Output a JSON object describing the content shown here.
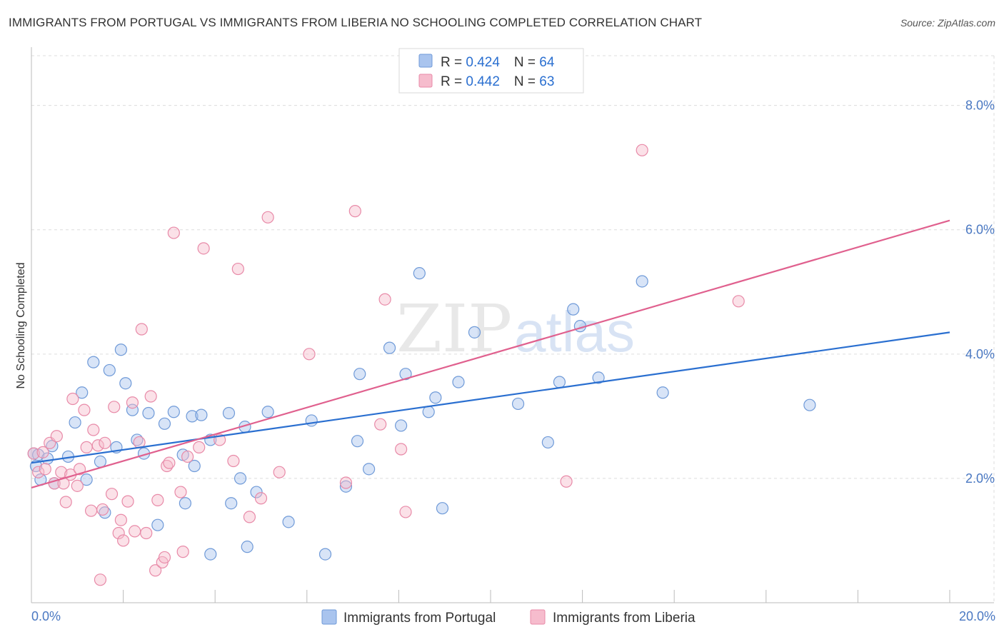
{
  "title": "IMMIGRANTS FROM PORTUGAL VS IMMIGRANTS FROM LIBERIA NO SCHOOLING COMPLETED CORRELATION CHART",
  "source": "Source: ZipAtlas.com",
  "watermark": {
    "zip": "ZIP",
    "atlas": "atlas"
  },
  "colors": {
    "portugal_fill": "#a9c4ee",
    "portugal_stroke": "#6f9ad8",
    "portugal_line": "#2a6fd0",
    "liberia_fill": "#f6bccd",
    "liberia_stroke": "#e88aa8",
    "liberia_line": "#e0608e",
    "tick_text": "#4a78c2",
    "grid": "#dddddd"
  },
  "legend_top": {
    "rows": [
      {
        "r_label": "R = ",
        "r_value": "0.424",
        "n_label": "N = ",
        "n_value": "64"
      },
      {
        "r_label": "R = ",
        "r_value": "0.442",
        "n_label": "N = ",
        "n_value": "63"
      }
    ]
  },
  "chart_data": {
    "type": "scatter",
    "title": "IMMIGRANTS FROM PORTUGAL VS IMMIGRANTS FROM LIBERIA NO SCHOOLING COMPLETED CORRELATION CHART",
    "xlabel": "",
    "ylabel": "No Schooling Completed",
    "xlim": [
      0,
      20
    ],
    "ylim": [
      0,
      8.8
    ],
    "x_tick_labels": [
      {
        "value": 0,
        "label": "0.0%"
      },
      {
        "value": 20,
        "label": "20.0%"
      }
    ],
    "y_tick_labels": [
      {
        "value": 2,
        "label": "2.0%"
      },
      {
        "value": 4,
        "label": "4.0%"
      },
      {
        "value": 6,
        "label": "6.0%"
      },
      {
        "value": 8,
        "label": "8.0%"
      }
    ],
    "x_minor_ticks": [
      0,
      2,
      4,
      6,
      8,
      10,
      12,
      14,
      16,
      18,
      20
    ],
    "legend_position": "top-center",
    "series": [
      {
        "name": "Immigrants from Portugal",
        "r": 0.424,
        "n": 64,
        "trend": {
          "x": [
            0,
            20
          ],
          "y": [
            2.25,
            4.35
          ]
        },
        "points": [
          {
            "x": 0.05,
            "y": 2.4
          },
          {
            "x": 0.1,
            "y": 2.2
          },
          {
            "x": 0.15,
            "y": 2.38
          },
          {
            "x": 0.2,
            "y": 1.98
          },
          {
            "x": 0.35,
            "y": 2.32
          },
          {
            "x": 0.45,
            "y": 2.52
          },
          {
            "x": 0.5,
            "y": 1.92
          },
          {
            "x": 0.8,
            "y": 2.35
          },
          {
            "x": 0.95,
            "y": 2.9
          },
          {
            "x": 1.1,
            "y": 3.38
          },
          {
            "x": 1.2,
            "y": 1.98
          },
          {
            "x": 1.35,
            "y": 3.87
          },
          {
            "x": 1.5,
            "y": 2.27
          },
          {
            "x": 1.6,
            "y": 1.45
          },
          {
            "x": 1.7,
            "y": 3.74
          },
          {
            "x": 1.85,
            "y": 2.5
          },
          {
            "x": 1.95,
            "y": 4.07
          },
          {
            "x": 2.05,
            "y": 3.53
          },
          {
            "x": 2.2,
            "y": 3.1
          },
          {
            "x": 2.3,
            "y": 2.62
          },
          {
            "x": 2.45,
            "y": 2.4
          },
          {
            "x": 2.55,
            "y": 3.05
          },
          {
            "x": 2.75,
            "y": 1.25
          },
          {
            "x": 2.9,
            "y": 2.88
          },
          {
            "x": 3.1,
            "y": 3.07
          },
          {
            "x": 3.3,
            "y": 2.38
          },
          {
            "x": 3.35,
            "y": 1.6
          },
          {
            "x": 3.5,
            "y": 3.0
          },
          {
            "x": 3.55,
            "y": 2.2
          },
          {
            "x": 3.7,
            "y": 3.02
          },
          {
            "x": 3.9,
            "y": 2.62
          },
          {
            "x": 3.9,
            "y": 0.78
          },
          {
            "x": 4.3,
            "y": 3.05
          },
          {
            "x": 4.35,
            "y": 1.6
          },
          {
            "x": 4.55,
            "y": 2.0
          },
          {
            "x": 4.65,
            "y": 2.83
          },
          {
            "x": 4.7,
            "y": 0.9
          },
          {
            "x": 4.9,
            "y": 1.78
          },
          {
            "x": 5.15,
            "y": 3.07
          },
          {
            "x": 5.6,
            "y": 1.3
          },
          {
            "x": 6.1,
            "y": 2.93
          },
          {
            "x": 6.4,
            "y": 0.78
          },
          {
            "x": 6.85,
            "y": 1.87
          },
          {
            "x": 7.1,
            "y": 2.6
          },
          {
            "x": 7.15,
            "y": 3.68
          },
          {
            "x": 7.35,
            "y": 2.15
          },
          {
            "x": 7.8,
            "y": 4.1
          },
          {
            "x": 8.05,
            "y": 2.85
          },
          {
            "x": 8.15,
            "y": 3.68
          },
          {
            "x": 8.45,
            "y": 5.3
          },
          {
            "x": 8.65,
            "y": 3.07
          },
          {
            "x": 8.8,
            "y": 3.3
          },
          {
            "x": 8.95,
            "y": 1.52
          },
          {
            "x": 9.3,
            "y": 3.55
          },
          {
            "x": 9.65,
            "y": 4.35
          },
          {
            "x": 10.6,
            "y": 3.2
          },
          {
            "x": 11.25,
            "y": 2.58
          },
          {
            "x": 11.5,
            "y": 3.55
          },
          {
            "x": 11.8,
            "y": 4.72
          },
          {
            "x": 11.95,
            "y": 4.45
          },
          {
            "x": 12.35,
            "y": 3.62
          },
          {
            "x": 13.3,
            "y": 5.17
          },
          {
            "x": 13.75,
            "y": 3.38
          },
          {
            "x": 16.95,
            "y": 3.18
          }
        ]
      },
      {
        "name": "Immigrants from Liberia",
        "r": 0.442,
        "n": 63,
        "trend": {
          "x": [
            0,
            20
          ],
          "y": [
            1.85,
            6.15
          ]
        },
        "points": [
          {
            "x": 0.05,
            "y": 2.4
          },
          {
            "x": 0.15,
            "y": 2.1
          },
          {
            "x": 0.3,
            "y": 2.15
          },
          {
            "x": 0.4,
            "y": 2.57
          },
          {
            "x": 0.5,
            "y": 1.92
          },
          {
            "x": 0.55,
            "y": 2.68
          },
          {
            "x": 0.65,
            "y": 2.1
          },
          {
            "x": 0.7,
            "y": 1.92
          },
          {
            "x": 0.75,
            "y": 1.62
          },
          {
            "x": 0.85,
            "y": 2.06
          },
          {
            "x": 0.9,
            "y": 3.28
          },
          {
            "x": 1.0,
            "y": 1.88
          },
          {
            "x": 1.05,
            "y": 2.15
          },
          {
            "x": 1.15,
            "y": 3.1
          },
          {
            "x": 1.2,
            "y": 2.5
          },
          {
            "x": 1.3,
            "y": 1.48
          },
          {
            "x": 1.35,
            "y": 2.78
          },
          {
            "x": 1.45,
            "y": 2.53
          },
          {
            "x": 1.5,
            "y": 0.37
          },
          {
            "x": 1.55,
            "y": 1.5
          },
          {
            "x": 1.6,
            "y": 2.57
          },
          {
            "x": 1.75,
            "y": 1.75
          },
          {
            "x": 1.8,
            "y": 3.15
          },
          {
            "x": 1.9,
            "y": 1.12
          },
          {
            "x": 1.95,
            "y": 1.33
          },
          {
            "x": 2.0,
            "y": 1.0
          },
          {
            "x": 2.1,
            "y": 1.63
          },
          {
            "x": 2.2,
            "y": 3.22
          },
          {
            "x": 2.25,
            "y": 1.15
          },
          {
            "x": 2.35,
            "y": 2.58
          },
          {
            "x": 2.4,
            "y": 4.4
          },
          {
            "x": 2.5,
            "y": 1.12
          },
          {
            "x": 2.6,
            "y": 3.32
          },
          {
            "x": 2.7,
            "y": 0.52
          },
          {
            "x": 2.75,
            "y": 1.65
          },
          {
            "x": 2.85,
            "y": 0.65
          },
          {
            "x": 2.9,
            "y": 0.73
          },
          {
            "x": 2.95,
            "y": 2.2
          },
          {
            "x": 3.0,
            "y": 2.25
          },
          {
            "x": 3.1,
            "y": 5.95
          },
          {
            "x": 3.25,
            "y": 1.78
          },
          {
            "x": 3.3,
            "y": 0.82
          },
          {
            "x": 3.4,
            "y": 2.35
          },
          {
            "x": 3.65,
            "y": 2.5
          },
          {
            "x": 3.75,
            "y": 5.7
          },
          {
            "x": 4.1,
            "y": 2.62
          },
          {
            "x": 4.4,
            "y": 2.28
          },
          {
            "x": 4.5,
            "y": 5.37
          },
          {
            "x": 4.75,
            "y": 1.38
          },
          {
            "x": 5.0,
            "y": 1.68
          },
          {
            "x": 5.15,
            "y": 6.2
          },
          {
            "x": 5.4,
            "y": 2.1
          },
          {
            "x": 6.05,
            "y": 4.0
          },
          {
            "x": 6.85,
            "y": 1.93
          },
          {
            "x": 7.05,
            "y": 6.3
          },
          {
            "x": 7.6,
            "y": 2.87
          },
          {
            "x": 7.7,
            "y": 4.88
          },
          {
            "x": 8.05,
            "y": 2.47
          },
          {
            "x": 8.15,
            "y": 1.46
          },
          {
            "x": 11.65,
            "y": 1.95
          },
          {
            "x": 13.3,
            "y": 7.28
          },
          {
            "x": 15.4,
            "y": 4.85
          },
          {
            "x": 0.25,
            "y": 2.42
          }
        ]
      }
    ]
  },
  "legend_bottom": {
    "items": [
      {
        "label": "Immigrants from Portugal"
      },
      {
        "label": "Immigrants from Liberia"
      }
    ]
  }
}
